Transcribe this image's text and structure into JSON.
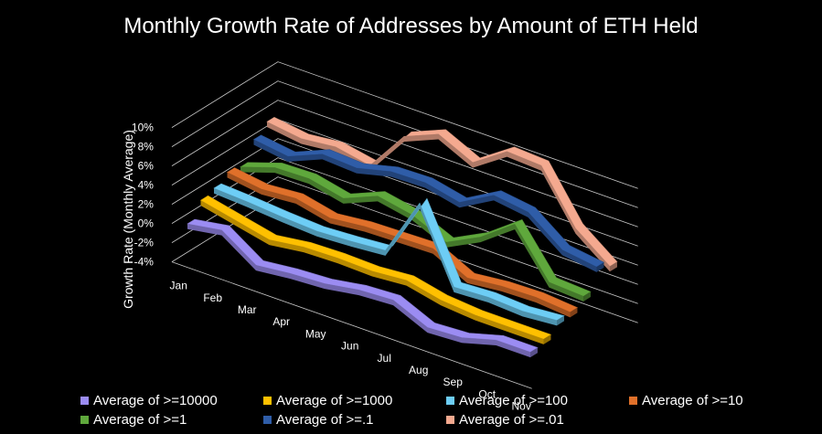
{
  "chart_data": {
    "type": "area",
    "variant": "3d-ribbon",
    "title": "Monthly Growth Rate of Addresses by Amount of ETH Held",
    "xlabel": "",
    "ylabel": "Growth Rate (Monthly Average)",
    "ylim": [
      -4,
      10
    ],
    "yticks": [
      "-4%",
      "-2%",
      "0%",
      "2%",
      "4%",
      "6%",
      "8%",
      "10%"
    ],
    "categories": [
      "Jan",
      "Feb",
      "Mar",
      "Apr",
      "May",
      "Jun",
      "Jul",
      "Aug",
      "Sep",
      "Oct",
      "Nov"
    ],
    "legend_position": "bottom",
    "series": [
      {
        "name": "Average of >=10000",
        "color": "#9B8CF2",
        "values": [
          0.0,
          0.6,
          -1.8,
          -1.4,
          -1.2,
          -0.6,
          -0.4,
          -2.0,
          -1.8,
          -0.8,
          -0.8
        ]
      },
      {
        "name": "Average of >=1000",
        "color": "#FFC000",
        "values": [
          1.6,
          0.8,
          0.0,
          0.5,
          0.6,
          0.5,
          0.8,
          0.0,
          -0.3,
          -0.3,
          -0.3
        ]
      },
      {
        "name": "Average of >=100",
        "color": "#6DCDF5",
        "values": [
          2.0,
          1.8,
          1.5,
          1.3,
          1.5,
          1.8,
          8.0,
          0.5,
          0.7,
          0.5,
          0.8
        ]
      },
      {
        "name": "Average of >=10",
        "color": "#E0702A",
        "values": [
          2.8,
          2.3,
          2.6,
          1.8,
          2.2,
          2.3,
          2.4,
          0.6,
          1.0,
          1.1,
          0.8
        ]
      },
      {
        "name": "Average of >=1",
        "color": "#5FA83C",
        "values": [
          2.5,
          3.7,
          3.8,
          3.0,
          4.5,
          3.8,
          2.2,
          4.0,
          6.6,
          1.8,
          1.6
        ]
      },
      {
        "name": "Average of >=.1",
        "color": "#2F5DA8",
        "values": [
          4.5,
          4.0,
          5.5,
          5.3,
          6.2,
          6.3,
          5.5,
          7.5,
          7.0,
          4.3,
          3.8
        ]
      },
      {
        "name": "Average of >=.01",
        "color": "#F4A98F",
        "values": [
          5.5,
          5.0,
          5.4,
          4.7,
          9.0,
          10.5,
          8.8,
          11.2,
          11.0,
          5.7,
          3.0
        ]
      }
    ]
  }
}
